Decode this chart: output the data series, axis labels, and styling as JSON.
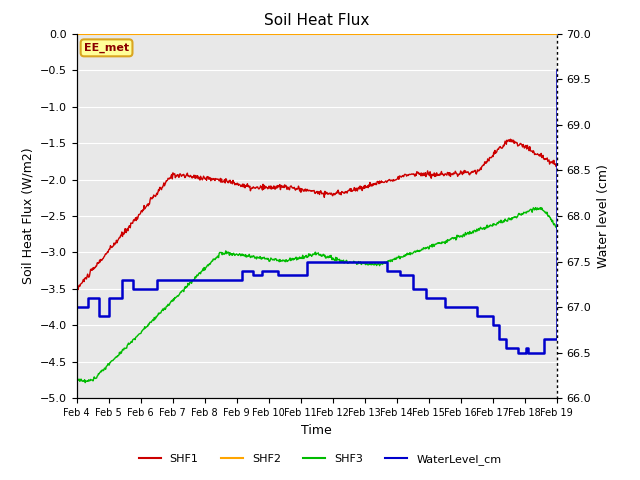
{
  "title": "Soil Heat Flux",
  "xlabel": "Time",
  "ylabel_left": "Soil Heat Flux (W/m2)",
  "ylabel_right": "Water level (cm)",
  "xlim": [
    0,
    15
  ],
  "ylim_left": [
    -5.0,
    0.0
  ],
  "ylim_right": [
    66.0,
    70.0
  ],
  "x_tick_labels": [
    "Feb 4",
    "Feb 5",
    "Feb 6",
    "Feb 7",
    "Feb 8",
    "Feb 9",
    "Feb 10",
    "Feb 11",
    "Feb 12",
    "Feb 13",
    "Feb 14",
    "Feb 15",
    "Feb 16",
    "Feb 17",
    "Feb 18",
    "Feb 19"
  ],
  "annotation_text": "EE_met",
  "plot_bg_color": "#e8e8e8",
  "shf2_color": "#FFA500",
  "shf1_color": "#cc0000",
  "shf3_color": "#00bb00",
  "water_color": "#0000cc",
  "grid_color": "#ffffff",
  "water_x": [
    0.0,
    0.25,
    0.35,
    0.5,
    0.7,
    0.85,
    1.0,
    1.15,
    1.4,
    1.55,
    1.75,
    2.2,
    2.5,
    5.0,
    5.15,
    5.3,
    5.5,
    5.65,
    5.8,
    6.0,
    6.3,
    7.0,
    7.2,
    8.0,
    9.5,
    9.7,
    9.9,
    10.1,
    10.3,
    10.5,
    10.65,
    10.9,
    11.5,
    12.5,
    13.0,
    13.2,
    13.4,
    13.6,
    13.8,
    14.0,
    14.05,
    14.1,
    14.5,
    14.6,
    15.0
  ],
  "water_y_cm": [
    67.0,
    67.0,
    67.1,
    67.1,
    66.9,
    66.9,
    67.1,
    67.1,
    67.3,
    67.3,
    67.2,
    67.2,
    67.3,
    67.3,
    67.4,
    67.4,
    67.35,
    67.35,
    67.4,
    67.4,
    67.35,
    67.35,
    67.5,
    67.5,
    67.5,
    67.4,
    67.4,
    67.35,
    67.35,
    67.2,
    67.2,
    67.1,
    67.0,
    66.9,
    66.8,
    66.65,
    66.55,
    66.55,
    66.5,
    66.5,
    66.55,
    66.5,
    66.5,
    66.65,
    69.6
  ]
}
